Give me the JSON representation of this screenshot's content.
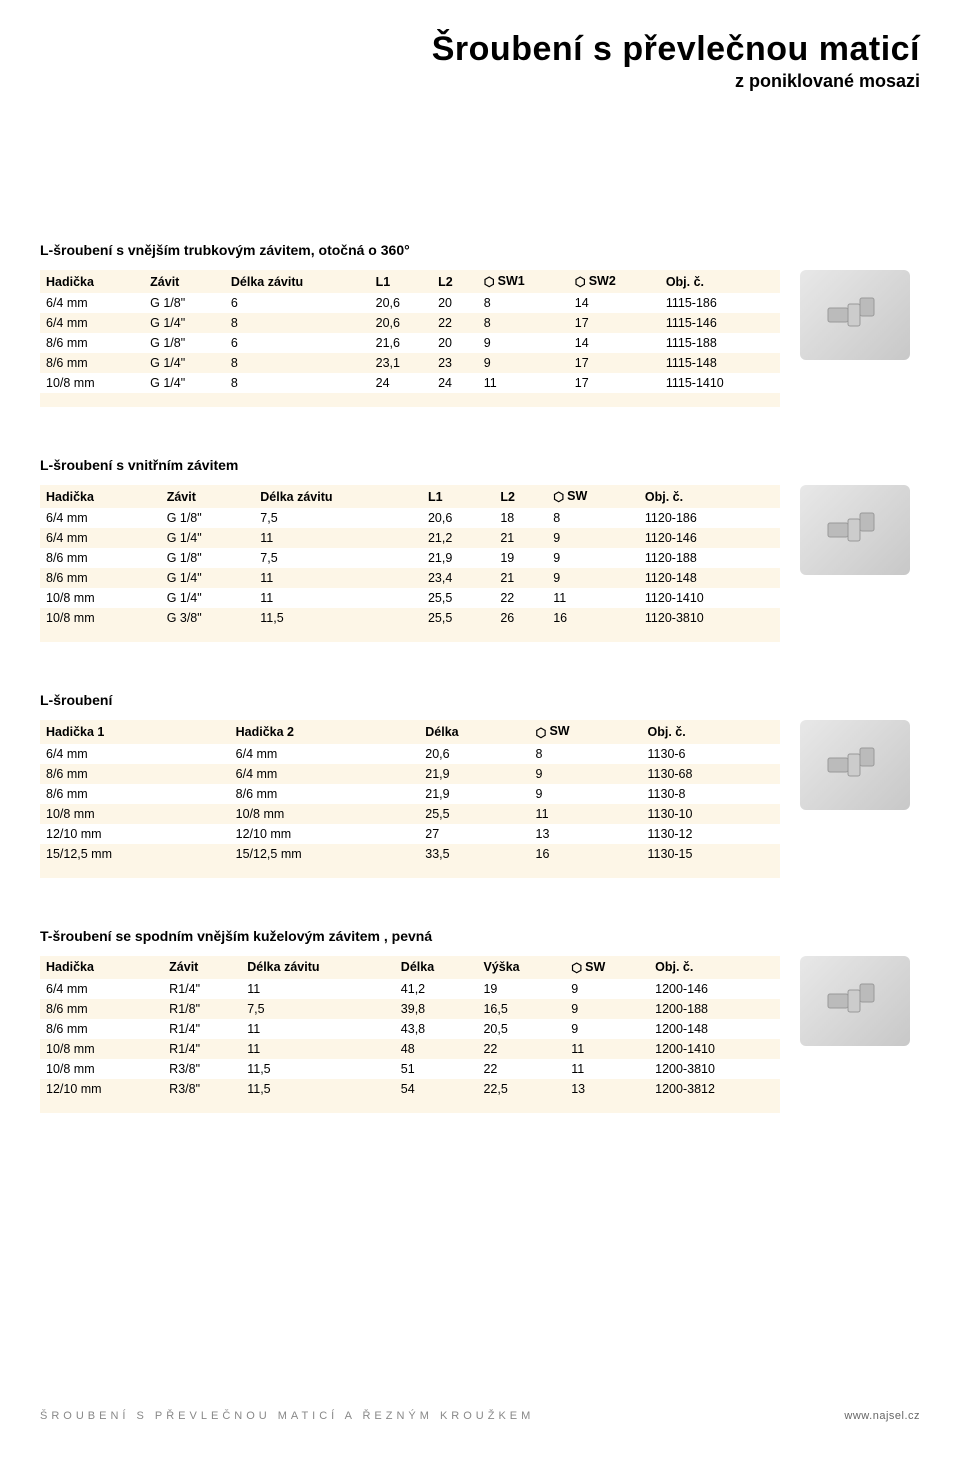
{
  "header": {
    "title": "Šroubení s převlečnou maticí",
    "subtitle": "z poniklované mosazi"
  },
  "colors": {
    "stripe": "#fdf6e7",
    "text": "#000000",
    "footer": "#888888",
    "bg": "#ffffff"
  },
  "hex_icon": "⬡",
  "sections": [
    {
      "title": "L-šroubení s vnějším trubkovým závitem, otočná o 360°",
      "columns": [
        "Hadička",
        "Závit",
        "Délka závitu",
        "L1",
        "L2",
        "SW1",
        "SW2",
        "Obj. č."
      ],
      "hex_cols": [
        5,
        6
      ],
      "rows": [
        [
          "6/4 mm",
          "G 1/8\"",
          "6",
          "20,6",
          "20",
          "8",
          "14",
          "1115-186"
        ],
        [
          "6/4 mm",
          "G 1/4\"",
          "8",
          "20,6",
          "22",
          "8",
          "17",
          "1115-146"
        ],
        [
          "8/6 mm",
          "G 1/8\"",
          "6",
          "21,6",
          "20",
          "9",
          "14",
          "1115-188"
        ],
        [
          "8/6 mm",
          "G 1/4\"",
          "8",
          "23,1",
          "23",
          "9",
          "17",
          "1115-148"
        ],
        [
          "10/8 mm",
          "G 1/4\"",
          "8",
          "24",
          "24",
          "11",
          "17",
          "1115-1410"
        ]
      ]
    },
    {
      "title": "L-šroubení s vnitřním závitem",
      "columns": [
        "Hadička",
        "Závit",
        "Délka závitu",
        "L1",
        "L2",
        "SW",
        "Obj. č."
      ],
      "hex_cols": [
        5
      ],
      "rows": [
        [
          "6/4 mm",
          "G 1/8\"",
          "7,5",
          "20,6",
          "18",
          "8",
          "1120-186"
        ],
        [
          "6/4 mm",
          "G 1/4\"",
          "11",
          "21,2",
          "21",
          "9",
          "1120-146"
        ],
        [
          "8/6 mm",
          "G 1/8\"",
          "7,5",
          "21,9",
          "19",
          "9",
          "1120-188"
        ],
        [
          "8/6 mm",
          "G 1/4\"",
          "11",
          "23,4",
          "21",
          "9",
          "1120-148"
        ],
        [
          "10/8 mm",
          "G 1/4\"",
          "11",
          "25,5",
          "22",
          "11",
          "1120-1410"
        ],
        [
          "10/8 mm",
          "G 3/8\"",
          "11,5",
          "25,5",
          "26",
          "16",
          "1120-3810"
        ]
      ]
    },
    {
      "title": "L-šroubení",
      "columns": [
        "Hadička 1",
        "Hadička 2",
        "Délka",
        "SW",
        "Obj. č."
      ],
      "hex_cols": [
        3
      ],
      "rows": [
        [
          "6/4 mm",
          "6/4 mm",
          "20,6",
          "8",
          "1130-6"
        ],
        [
          "8/6 mm",
          "6/4 mm",
          "21,9",
          "9",
          "1130-68"
        ],
        [
          "8/6 mm",
          "8/6 mm",
          "21,9",
          "9",
          "1130-8"
        ],
        [
          "10/8 mm",
          "10/8 mm",
          "25,5",
          "11",
          "1130-10"
        ],
        [
          "12/10 mm",
          "12/10 mm",
          "27",
          "13",
          "1130-12"
        ],
        [
          "15/12,5 mm",
          "15/12,5 mm",
          "33,5",
          "16",
          "1130-15"
        ]
      ]
    },
    {
      "title": "T-šroubení se spodním vnějším kuželovým závitem , pevná",
      "columns": [
        "Hadička",
        "Závit",
        "Délka závitu",
        "Délka",
        "Výška",
        "SW",
        "Obj. č."
      ],
      "hex_cols": [
        5
      ],
      "rows": [
        [
          "6/4 mm",
          "R1/4\"",
          "11",
          "41,2",
          "19",
          "9",
          "1200-146"
        ],
        [
          "8/6 mm",
          "R1/8\"",
          "7,5",
          "39,8",
          "16,5",
          "9",
          "1200-188"
        ],
        [
          "8/6 mm",
          "R1/4\"",
          "11",
          "43,8",
          "20,5",
          "9",
          "1200-148"
        ],
        [
          "10/8 mm",
          "R1/4\"",
          "11",
          "48",
          "22",
          "11",
          "1200-1410"
        ],
        [
          "10/8 mm",
          "R3/8\"",
          "11,5",
          "51",
          "22",
          "11",
          "1200-3810"
        ],
        [
          "12/10 mm",
          "R3/8\"",
          "11,5",
          "54",
          "22,5",
          "13",
          "1200-3812"
        ]
      ]
    }
  ],
  "footer": {
    "left": "ŠROUBENÍ S PŘEVLEČNOU MATICÍ A ŘEZNÝM KROUŽKEM",
    "right": "www.najsel.cz"
  }
}
